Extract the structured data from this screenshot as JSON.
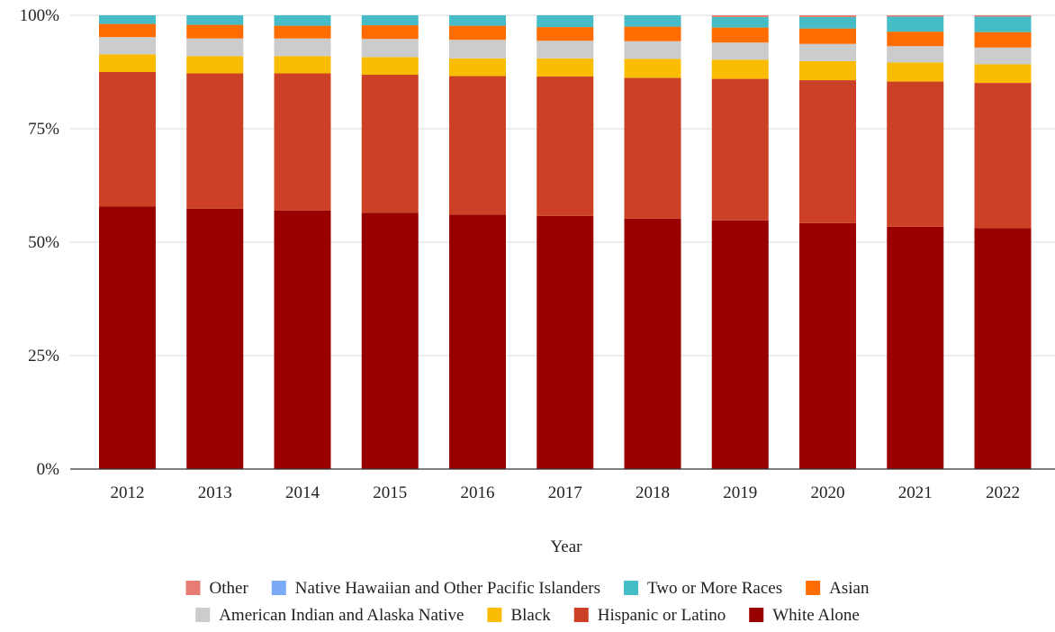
{
  "chart_data": {
    "type": "bar",
    "stacked": true,
    "percent_stacked": true,
    "categories": [
      "2012",
      "2013",
      "2014",
      "2015",
      "2016",
      "2017",
      "2018",
      "2019",
      "2020",
      "2021",
      "2022"
    ],
    "series": [
      {
        "name": "White Alone",
        "color": "#990000",
        "values": [
          57.9,
          57.4,
          57.0,
          56.5,
          56.1,
          55.8,
          55.2,
          54.8,
          54.2,
          53.4,
          53.1
        ]
      },
      {
        "name": "Hispanic or Latino",
        "color": "#cc4125",
        "values": [
          29.6,
          29.8,
          30.2,
          30.4,
          30.5,
          30.7,
          31.0,
          31.2,
          31.5,
          32.0,
          32.0
        ]
      },
      {
        "name": "Black",
        "color": "#fbbc04",
        "values": [
          3.9,
          3.8,
          3.8,
          3.9,
          3.9,
          4.0,
          4.2,
          4.2,
          4.2,
          4.2,
          4.1
        ]
      },
      {
        "name": "American Indian and Alaska Native",
        "color": "#cccccc",
        "values": [
          3.8,
          3.9,
          3.9,
          4.0,
          4.1,
          3.9,
          3.9,
          3.8,
          3.8,
          3.6,
          3.7
        ]
      },
      {
        "name": "Asian",
        "color": "#ff6d01",
        "values": [
          2.9,
          3.0,
          2.8,
          3.0,
          3.1,
          3.0,
          3.2,
          3.3,
          3.4,
          3.2,
          3.4
        ]
      },
      {
        "name": "Two or More Races",
        "color": "#46bdc6",
        "values": [
          1.9,
          2.1,
          2.3,
          2.2,
          2.3,
          2.6,
          2.5,
          2.3,
          2.5,
          3.3,
          3.4
        ]
      },
      {
        "name": "Native Hawaiian and Other Pacific Islanders",
        "color": "#7baaf7",
        "values": [
          0.0,
          0.0,
          0.0,
          0.0,
          0.0,
          0.0,
          0.0,
          0.0,
          0.0,
          0.0,
          0.0
        ]
      },
      {
        "name": "Other",
        "color": "#e67c73",
        "values": [
          0.0,
          0.0,
          0.0,
          0.0,
          0.0,
          0.0,
          0.0,
          0.4,
          0.4,
          0.3,
          0.3
        ]
      }
    ],
    "ylim": [
      0,
      100
    ],
    "yticks": [
      0,
      25,
      50,
      75,
      100
    ],
    "ytick_labels": [
      "0%",
      "25%",
      "50%",
      "75%",
      "100%"
    ],
    "xlabel": "Year",
    "ylabel": "",
    "grid": true,
    "legend_position": "bottom",
    "legend_rows": [
      [
        "Other",
        "Native Hawaiian and Other Pacific Islanders",
        "Two or More Races",
        "Asian"
      ],
      [
        "American Indian and Alaska Native",
        "Black",
        "Hispanic or Latino",
        "White Alone"
      ]
    ]
  }
}
